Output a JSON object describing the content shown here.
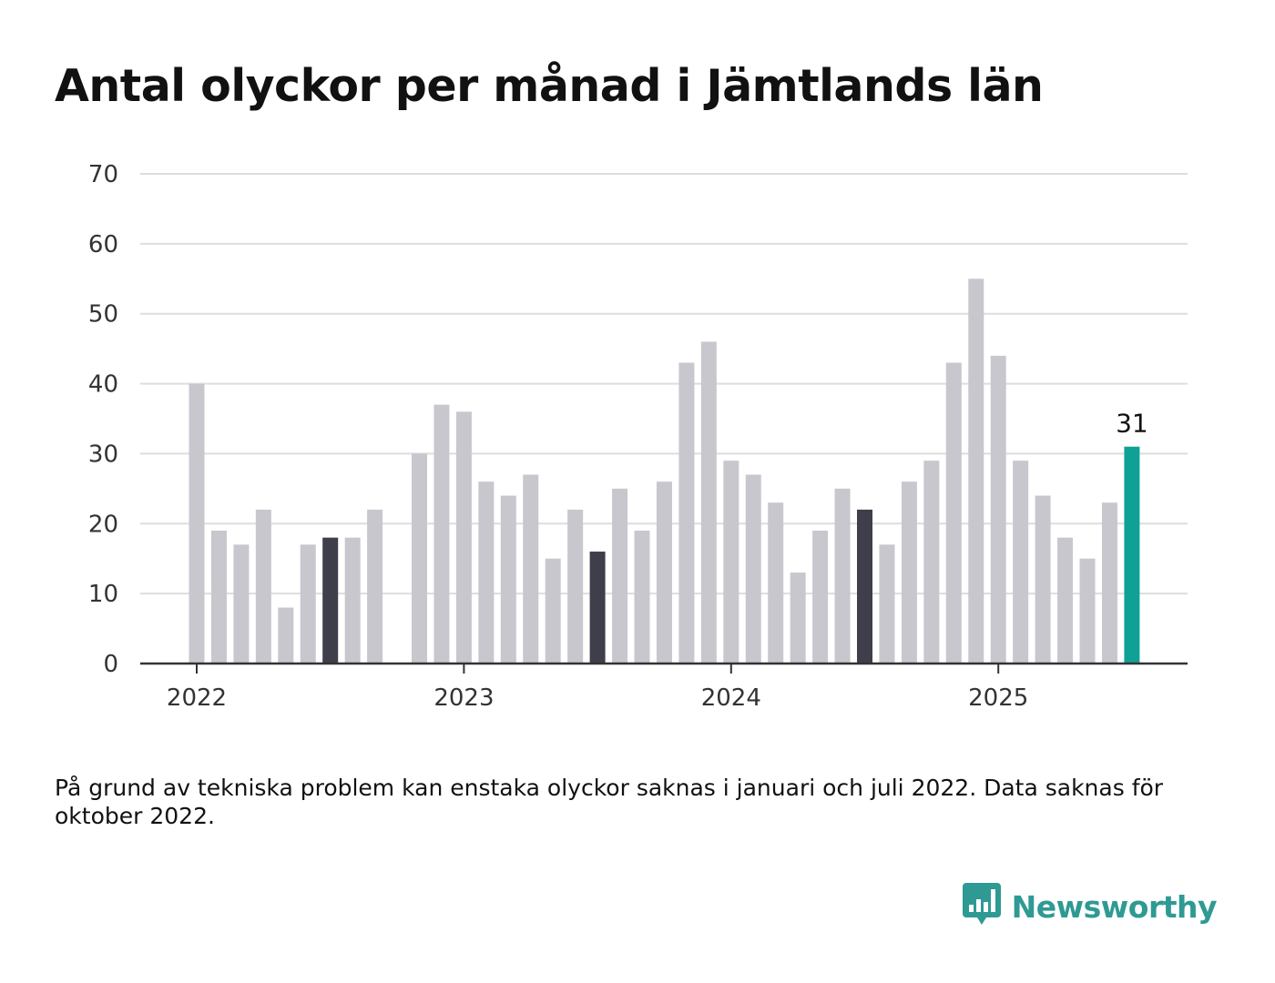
{
  "title": "Antal olyckor per månad i Jämtlands län",
  "note": "På grund av tekniska problem kan enstaka olyckor saknas i januari och juli 2022. Data saknas för oktober 2022.",
  "brand": {
    "name": "Newsworthy",
    "icon": "newsworthy-logo-icon",
    "color": "#2e9a93"
  },
  "colors": {
    "default": "#c8c7ce",
    "highlight": "#3f3e4b",
    "latest": "#10a196",
    "grid": "#dddddd",
    "axis": "#333333"
  },
  "chart_data": {
    "type": "bar",
    "title": "Antal olyckor per månad i Jämtlands län",
    "xlabel": "",
    "ylabel": "",
    "ylim": [
      0,
      70
    ],
    "yticks": [
      0,
      10,
      20,
      30,
      40,
      50,
      60,
      70
    ],
    "xticks": [
      "2022",
      "2023",
      "2024",
      "2025"
    ],
    "grid": true,
    "categories": [
      "2022-01",
      "2022-02",
      "2022-03",
      "2022-04",
      "2022-05",
      "2022-06",
      "2022-07",
      "2022-08",
      "2022-09",
      "2022-10",
      "2022-11",
      "2022-12",
      "2023-01",
      "2023-02",
      "2023-03",
      "2023-04",
      "2023-05",
      "2023-06",
      "2023-07",
      "2023-08",
      "2023-09",
      "2023-10",
      "2023-11",
      "2023-12",
      "2024-01",
      "2024-02",
      "2024-03",
      "2024-04",
      "2024-05",
      "2024-06",
      "2024-07",
      "2024-08",
      "2024-09",
      "2024-10",
      "2024-11",
      "2024-12",
      "2025-01",
      "2025-02",
      "2025-03",
      "2025-04",
      "2025-05",
      "2025-06",
      "2025-07"
    ],
    "values": [
      40,
      19,
      17,
      22,
      8,
      17,
      18,
      18,
      22,
      null,
      30,
      37,
      36,
      26,
      24,
      27,
      15,
      22,
      16,
      25,
      19,
      26,
      43,
      46,
      29,
      27,
      23,
      13,
      19,
      25,
      22,
      17,
      26,
      29,
      43,
      55,
      44,
      29,
      24,
      18,
      15,
      23,
      31
    ],
    "highlight_categories": [
      "2022-07",
      "2023-07",
      "2024-07"
    ],
    "latest_category": "2025-07",
    "data_labels": [
      {
        "category": "2025-07",
        "text": "31"
      }
    ]
  }
}
